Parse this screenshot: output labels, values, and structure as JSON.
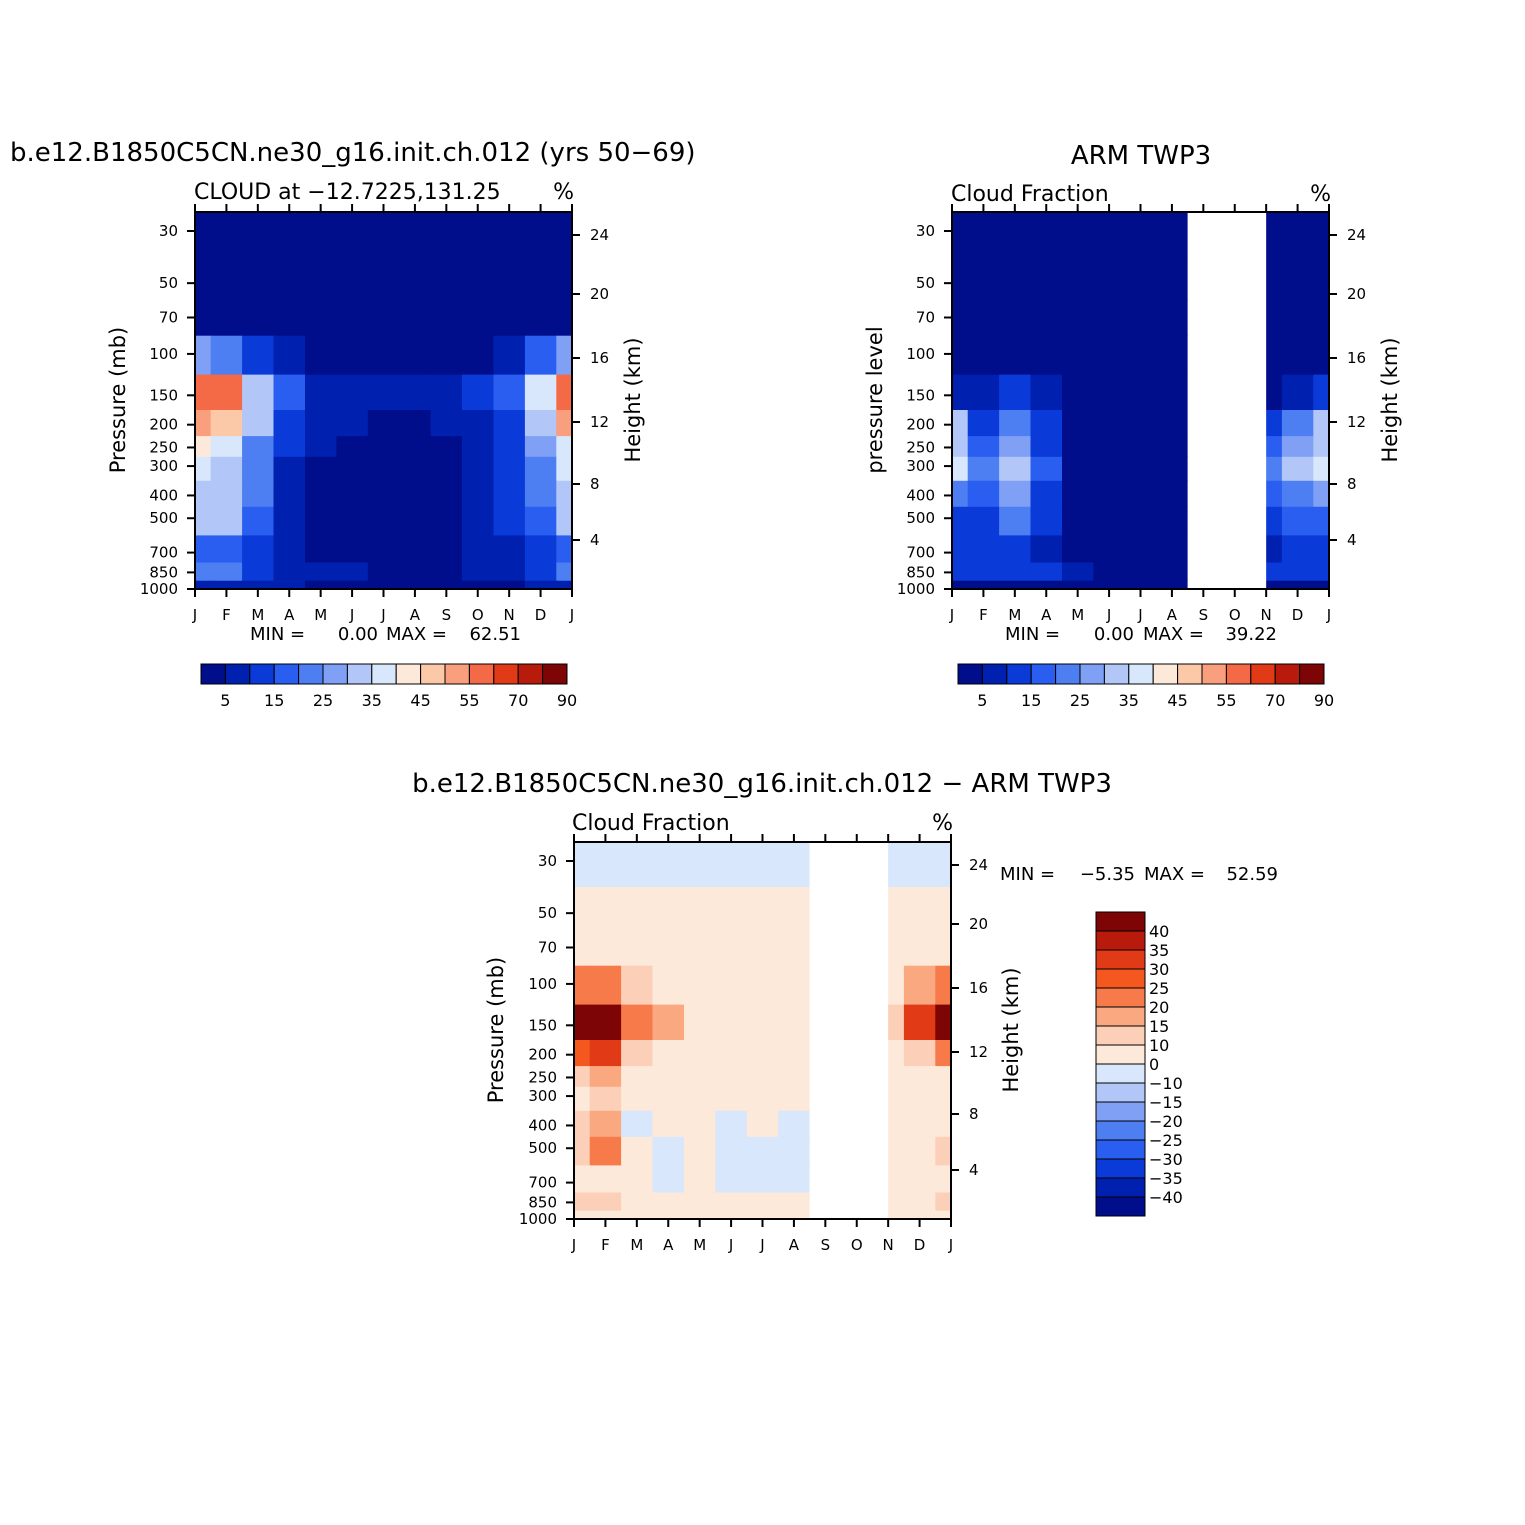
{
  "palette": {
    "seq_colors": [
      "#000e8b",
      "#0020b0",
      "#0a3ad8",
      "#2a5ef0",
      "#4d7ef2",
      "#7fa0f4",
      "#b2c6f7",
      "#d8e7fb",
      "#fde9d9",
      "#fcc9a8",
      "#f99f7e",
      "#f46a46",
      "#e03a17",
      "#b81a0b",
      "#7e0505"
    ],
    "diff_colors": [
      "#7e0505",
      "#b81a0b",
      "#e03a17",
      "#f4581f",
      "#f77a4a",
      "#f9a880",
      "#fcd0b8",
      "#fde9d9",
      "#d8e7fb",
      "#b2c6f7",
      "#7fa0f4",
      "#4d7ef2",
      "#2a5ef0",
      "#0a3ad8",
      "#0020b0",
      "#000e8b"
    ]
  },
  "chart_data": [
    {
      "type": "heatmap",
      "title": "b.e12.B1850C5CN.ne30_g16.init.ch.012 (yrs 50−69)",
      "subtitle_left": "CLOUD at −12.7225,131.25",
      "subtitle_right": "%",
      "ylabel": "Pressure (mb)",
      "ylabel_right": "Height (km)",
      "x_ticks": [
        "J",
        "F",
        "M",
        "A",
        "M",
        "J",
        "J",
        "A",
        "S",
        "O",
        "N",
        "D",
        "J"
      ],
      "y_ticks": [
        "30",
        "50",
        "70",
        "100",
        "150",
        "200",
        "250",
        "300",
        "400",
        "500",
        "700",
        "850",
        "1000"
      ],
      "y_ticks_right": [
        "24",
        "20",
        "16",
        "12",
        "8",
        "4"
      ],
      "stats": {
        "min_label": "MIN =",
        "min": "0.00",
        "max_label": "MAX =",
        "max": "62.51"
      },
      "colorbar_labels": [
        "5",
        "15",
        "25",
        "35",
        "45",
        "55",
        "70",
        "90"
      ],
      "missing_months": [],
      "months_col": [
        "J",
        "F",
        "M",
        "A",
        "M",
        "J",
        "J",
        "A",
        "S",
        "O",
        "N",
        "D",
        "J"
      ],
      "levels_mb": [
        30,
        50,
        70,
        100,
        150,
        200,
        250,
        300,
        400,
        500,
        700,
        850,
        1000
      ],
      "values": [
        [
          2,
          2,
          2,
          2,
          2,
          2,
          2,
          2,
          2,
          2,
          2,
          2,
          2
        ],
        [
          2,
          2,
          2,
          2,
          2,
          2,
          2,
          2,
          2,
          2,
          2,
          2,
          2
        ],
        [
          3,
          3,
          3,
          2,
          2,
          2,
          2,
          2,
          2,
          2,
          2,
          3,
          3
        ],
        [
          25,
          20,
          10,
          6,
          4,
          3,
          3,
          3,
          3,
          4,
          8,
          18,
          25
        ],
        [
          57,
          55,
          32,
          18,
          9,
          8,
          8,
          8,
          7,
          10,
          16,
          35,
          57
        ],
        [
          52,
          48,
          30,
          14,
          8,
          5,
          4,
          4,
          5,
          9,
          14,
          30,
          50
        ],
        [
          40,
          36,
          24,
          10,
          5,
          2,
          2,
          2,
          3,
          7,
          12,
          26,
          38
        ],
        [
          38,
          34,
          22,
          8,
          4,
          2,
          2,
          2,
          2,
          6,
          11,
          24,
          36
        ],
        [
          34,
          33,
          20,
          7,
          4,
          2,
          2,
          2,
          2,
          6,
          10,
          20,
          32
        ],
        [
          33,
          32,
          18,
          7,
          4,
          2,
          2,
          2,
          2,
          6,
          10,
          18,
          30
        ],
        [
          18,
          16,
          12,
          6,
          4,
          2,
          2,
          2,
          2,
          5,
          8,
          12,
          18
        ],
        [
          22,
          22,
          14,
          8,
          6,
          5,
          3,
          3,
          3,
          5,
          8,
          14,
          20
        ],
        [
          8,
          8,
          6,
          5,
          4,
          3,
          2,
          2,
          2,
          3,
          4,
          6,
          8
        ]
      ]
    },
    {
      "type": "heatmap",
      "title": "ARM TWP3",
      "subtitle_left": "Cloud Fraction",
      "subtitle_right": "%",
      "ylabel": "pressure level",
      "ylabel_right": "Height (km)",
      "x_ticks": [
        "J",
        "F",
        "M",
        "A",
        "M",
        "J",
        "J",
        "A",
        "S",
        "O",
        "N",
        "D",
        "J"
      ],
      "y_ticks": [
        "30",
        "50",
        "70",
        "100",
        "150",
        "200",
        "250",
        "300",
        "400",
        "500",
        "700",
        "850",
        "1000"
      ],
      "y_ticks_right": [
        "24",
        "20",
        "16",
        "12",
        "8",
        "4"
      ],
      "stats": {
        "min_label": "MIN =",
        "min": "0.00",
        "max_label": "MAX =",
        "max": "39.22"
      },
      "colorbar_labels": [
        "5",
        "15",
        "25",
        "35",
        "45",
        "55",
        "70",
        "90"
      ],
      "missing_months": [
        8,
        9
      ],
      "months_col": [
        "J",
        "F",
        "M",
        "A",
        "M",
        "J",
        "J",
        "A",
        "S",
        "O",
        "N",
        "D",
        "J"
      ],
      "levels_mb": [
        30,
        50,
        70,
        100,
        150,
        200,
        250,
        300,
        400,
        500,
        700,
        850,
        1000
      ],
      "values": [
        [
          0,
          0,
          0,
          0,
          0,
          0,
          0,
          0,
          null,
          null,
          0,
          0,
          0
        ],
        [
          0,
          0,
          0,
          0,
          0,
          0,
          0,
          0,
          null,
          null,
          0,
          0,
          0
        ],
        [
          0,
          0,
          0,
          0,
          0,
          0,
          0,
          0,
          null,
          null,
          0,
          0,
          0
        ],
        [
          1,
          2,
          4,
          1,
          0,
          0,
          0,
          0,
          null,
          null,
          0,
          1,
          2
        ],
        [
          8,
          6,
          10,
          5,
          1,
          0,
          0,
          0,
          null,
          null,
          4,
          8,
          10
        ],
        [
          30,
          14,
          22,
          12,
          2,
          0,
          0,
          0,
          null,
          null,
          12,
          22,
          30
        ],
        [
          34,
          18,
          26,
          14,
          2,
          0,
          0,
          0,
          null,
          null,
          16,
          26,
          34
        ],
        [
          36,
          20,
          30,
          16,
          2,
          0,
          0,
          0,
          null,
          null,
          20,
          30,
          36
        ],
        [
          24,
          16,
          26,
          14,
          2,
          0,
          0,
          0,
          null,
          null,
          16,
          24,
          26
        ],
        [
          14,
          12,
          24,
          12,
          2,
          0,
          0,
          0,
          null,
          null,
          12,
          18,
          16
        ],
        [
          12,
          10,
          12,
          8,
          4,
          2,
          0,
          0,
          null,
          null,
          8,
          10,
          12
        ],
        [
          14,
          12,
          14,
          10,
          6,
          3,
          0,
          0,
          null,
          null,
          10,
          12,
          14
        ],
        [
          4,
          4,
          4,
          3,
          2,
          1,
          0,
          0,
          null,
          null,
          3,
          4,
          4
        ]
      ]
    },
    {
      "type": "heatmap",
      "title": "b.e12.B1850C5CN.ne30_g16.init.ch.012 − ARM TWP3",
      "subtitle_left": "Cloud Fraction",
      "subtitle_right": "%",
      "ylabel": "Pressure (mb)",
      "ylabel_right": "Height (km)",
      "x_ticks": [
        "J",
        "F",
        "M",
        "A",
        "M",
        "J",
        "J",
        "A",
        "S",
        "O",
        "N",
        "D",
        "J"
      ],
      "y_ticks": [
        "30",
        "50",
        "70",
        "100",
        "150",
        "200",
        "250",
        "300",
        "400",
        "500",
        "700",
        "850",
        "1000"
      ],
      "y_ticks_right": [
        "24",
        "20",
        "16",
        "12",
        "8",
        "4"
      ],
      "stats": {
        "min_label": "MIN =",
        "min": "−5.35",
        "max_label": "MAX =",
        "max": "52.59"
      },
      "colorbar_labels": [
        "40",
        "35",
        "30",
        "25",
        "20",
        "15",
        "10",
        "0",
        "−10",
        "−15",
        "−20",
        "−25",
        "−30",
        "−35",
        "−40"
      ],
      "missing_months": [
        8,
        9
      ],
      "months_col": [
        "J",
        "F",
        "M",
        "A",
        "M",
        "J",
        "J",
        "A",
        "S",
        "O",
        "N",
        "D",
        "J"
      ],
      "levels_mb": [
        30,
        50,
        70,
        100,
        150,
        200,
        250,
        300,
        400,
        500,
        700,
        850,
        1000
      ],
      "values": [
        [
          -2,
          -2,
          -2,
          -2,
          -2,
          -2,
          -2,
          -2,
          null,
          null,
          -2,
          -2,
          -2
        ],
        [
          2,
          2,
          2,
          2,
          2,
          2,
          2,
          2,
          null,
          null,
          2,
          2,
          2
        ],
        [
          3,
          3,
          3,
          2,
          2,
          2,
          2,
          2,
          null,
          null,
          2,
          3,
          3
        ],
        [
          24,
          22,
          10,
          6,
          4,
          3,
          3,
          3,
          null,
          null,
          8,
          18,
          24
        ],
        [
          50,
          48,
          24,
          15,
          8,
          8,
          8,
          6,
          null,
          null,
          14,
          30,
          48
        ],
        [
          26,
          34,
          10,
          3,
          6,
          5,
          4,
          4,
          null,
          null,
          5,
          10,
          22
        ],
        [
          12,
          18,
          4,
          3,
          4,
          2,
          2,
          2,
          null,
          null,
          3,
          6,
          8
        ],
        [
          8,
          12,
          4,
          3,
          3,
          2,
          2,
          2,
          null,
          null,
          3,
          5,
          6
        ],
        [
          10,
          16,
          -2,
          2,
          3,
          -2,
          2,
          -2,
          null,
          null,
          4,
          6,
          6
        ],
        [
          12,
          22,
          4,
          -2,
          3,
          -2,
          -2,
          -2,
          null,
          null,
          3,
          8,
          12
        ],
        [
          6,
          6,
          2,
          -2,
          2,
          -2,
          -2,
          -2,
          null,
          null,
          2,
          4,
          6
        ],
        [
          10,
          12,
          2,
          3,
          2,
          2,
          2,
          2,
          null,
          null,
          3,
          6,
          10
        ],
        [
          8,
          8,
          4,
          3,
          3,
          3,
          2,
          2,
          null,
          null,
          3,
          4,
          8
        ]
      ]
    }
  ]
}
